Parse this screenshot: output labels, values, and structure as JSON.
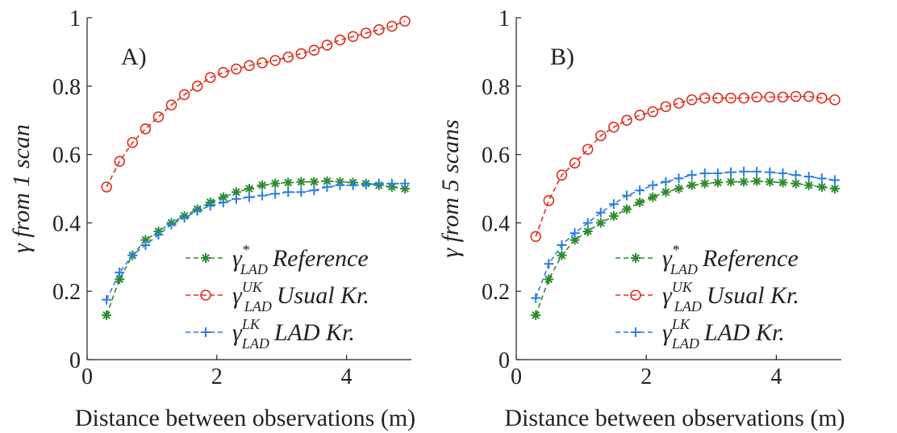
{
  "chart_data": [
    {
      "type": "line",
      "panel_label": "A)",
      "xlabel": "Distance between observations (m)",
      "ylabel": "γ from 1 scan",
      "x": [
        0.3,
        0.5,
        0.7,
        0.9,
        1.1,
        1.3,
        1.5,
        1.7,
        1.9,
        2.1,
        2.3,
        2.5,
        2.7,
        2.9,
        3.1,
        3.3,
        3.5,
        3.7,
        3.9,
        4.1,
        4.3,
        4.5,
        4.7,
        4.9
      ],
      "xlim": [
        0,
        5
      ],
      "xticks": [
        0,
        2,
        4
      ],
      "ylim": [
        0,
        1
      ],
      "yticks": [
        0,
        0.2,
        0.4,
        0.6,
        0.8,
        1
      ],
      "legend": "lower right",
      "series": [
        {
          "name": "Reference",
          "symbol": {
            "base": "γ",
            "sup": "*",
            "sub": "LAD"
          },
          "color": "#2e8b2e",
          "marker": "asterisk",
          "values": [
            0.13,
            0.235,
            0.305,
            0.35,
            0.375,
            0.4,
            0.42,
            0.44,
            0.46,
            0.475,
            0.49,
            0.5,
            0.51,
            0.515,
            0.518,
            0.52,
            0.52,
            0.522,
            0.52,
            0.518,
            0.515,
            0.51,
            0.505,
            0.5
          ]
        },
        {
          "name": "Usual Kr.",
          "symbol": {
            "base": "γ",
            "sup": "UK",
            "sub": "LAD"
          },
          "color": "#e03020",
          "marker": "circle",
          "values": [
            0.505,
            0.58,
            0.635,
            0.675,
            0.71,
            0.745,
            0.775,
            0.8,
            0.825,
            0.84,
            0.85,
            0.86,
            0.868,
            0.875,
            0.885,
            0.895,
            0.905,
            0.92,
            0.935,
            0.945,
            0.955,
            0.965,
            0.975,
            0.99
          ]
        },
        {
          "name": "LAD Kr.",
          "symbol": {
            "base": "γ",
            "sup": "LK",
            "sub": "LAD"
          },
          "color": "#2a7fe0",
          "marker": "plus",
          "values": [
            0.175,
            0.255,
            0.305,
            0.335,
            0.365,
            0.395,
            0.415,
            0.435,
            0.45,
            0.46,
            0.47,
            0.475,
            0.48,
            0.485,
            0.49,
            0.49,
            0.495,
            0.505,
            0.51,
            0.51,
            0.512,
            0.515,
            0.515,
            0.515
          ]
        }
      ]
    },
    {
      "type": "line",
      "panel_label": "B)",
      "xlabel": "Distance between observations (m)",
      "ylabel": "γ from 5 scans",
      "x": [
        0.3,
        0.5,
        0.7,
        0.9,
        1.1,
        1.3,
        1.5,
        1.7,
        1.9,
        2.1,
        2.3,
        2.5,
        2.7,
        2.9,
        3.1,
        3.3,
        3.5,
        3.7,
        3.9,
        4.1,
        4.3,
        4.5,
        4.7,
        4.9
      ],
      "xlim": [
        0,
        5
      ],
      "xticks": [
        0,
        2,
        4
      ],
      "ylim": [
        0,
        1
      ],
      "yticks": [
        0,
        0.2,
        0.4,
        0.6,
        0.8,
        1
      ],
      "legend": "lower right",
      "series": [
        {
          "name": "Reference",
          "symbol": {
            "base": "γ",
            "sup": "*",
            "sub": "LAD"
          },
          "color": "#2e8b2e",
          "marker": "asterisk",
          "values": [
            0.13,
            0.235,
            0.305,
            0.35,
            0.375,
            0.4,
            0.42,
            0.44,
            0.46,
            0.475,
            0.49,
            0.5,
            0.51,
            0.515,
            0.518,
            0.52,
            0.52,
            0.522,
            0.52,
            0.518,
            0.515,
            0.51,
            0.505,
            0.5
          ]
        },
        {
          "name": "Usual Kr.",
          "symbol": {
            "base": "γ",
            "sup": "UK",
            "sub": "LAD"
          },
          "color": "#e03020",
          "marker": "circle",
          "values": [
            0.36,
            0.465,
            0.54,
            0.575,
            0.615,
            0.655,
            0.68,
            0.7,
            0.715,
            0.725,
            0.74,
            0.75,
            0.76,
            0.765,
            0.765,
            0.765,
            0.765,
            0.768,
            0.768,
            0.768,
            0.77,
            0.77,
            0.765,
            0.76
          ]
        },
        {
          "name": "LAD Kr.",
          "symbol": {
            "base": "γ",
            "sup": "LK",
            "sub": "LAD"
          },
          "color": "#2a7fe0",
          "marker": "plus",
          "values": [
            0.18,
            0.28,
            0.335,
            0.37,
            0.4,
            0.43,
            0.455,
            0.48,
            0.495,
            0.51,
            0.52,
            0.53,
            0.54,
            0.545,
            0.545,
            0.548,
            0.55,
            0.55,
            0.548,
            0.545,
            0.54,
            0.535,
            0.53,
            0.525
          ]
        }
      ]
    }
  ]
}
